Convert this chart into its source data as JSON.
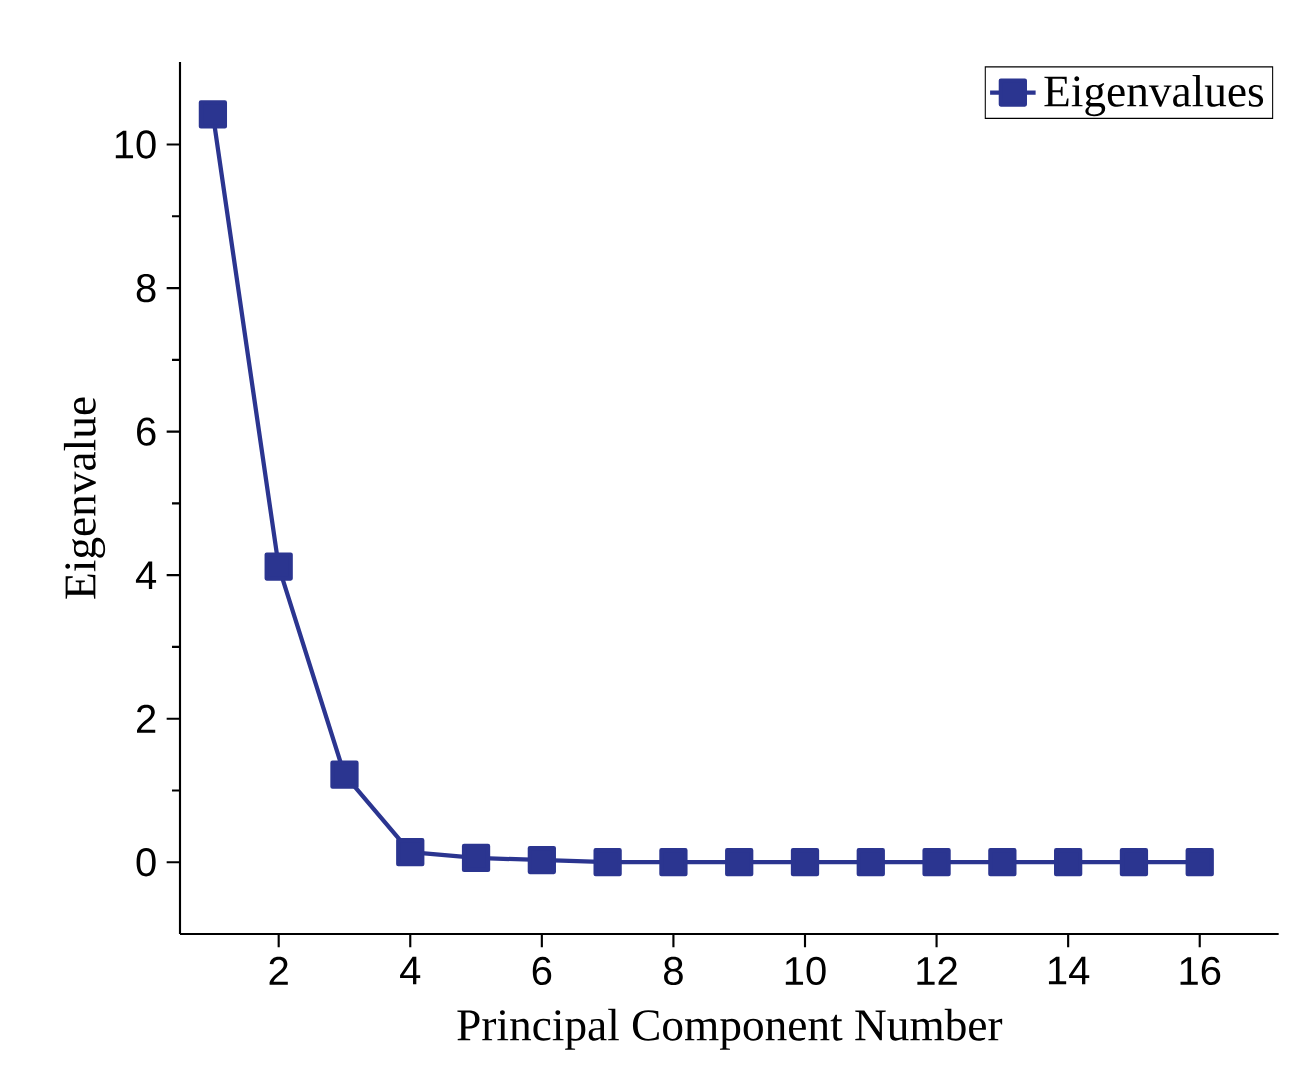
{
  "chart_data": {
    "type": "line",
    "xlabel": "Principal Component Number",
    "ylabel": "Eigenvalue",
    "x": [
      1,
      2,
      3,
      4,
      5,
      6,
      7,
      8,
      9,
      10,
      11,
      12,
      13,
      14,
      15,
      16
    ],
    "series": [
      {
        "name": "Eigenvalues",
        "color": "#2b3590",
        "values": [
          10.42,
          4.12,
          1.22,
          0.14,
          0.06,
          0.03,
          0,
          0,
          0,
          0,
          0,
          0,
          0,
          0,
          0,
          0
        ]
      }
    ],
    "xlim": [
      0.5,
      17.2
    ],
    "ylim": [
      -1,
      11.15
    ],
    "xticks": [
      2,
      4,
      6,
      8,
      10,
      12,
      14,
      16
    ],
    "yticks": [
      0,
      2,
      4,
      6,
      8,
      10
    ],
    "marker": "square",
    "line_style": "solid",
    "legend": "top right",
    "grid": false
  }
}
